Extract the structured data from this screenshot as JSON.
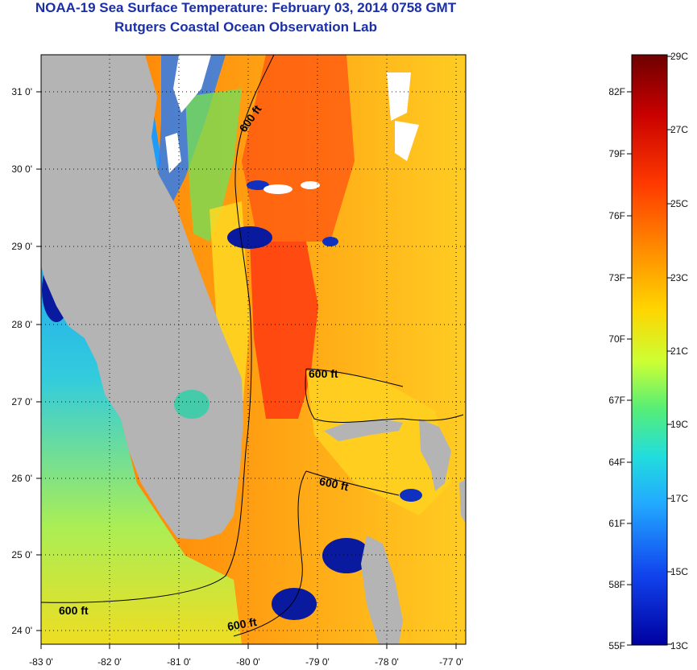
{
  "header": {
    "title": "NOAA-19 Sea Surface Temperature:  February 03, 2014 0758 GMT",
    "subtitle": "Rutgers Coastal Ocean Observation Lab"
  },
  "map": {
    "lon_labels": [
      "-83 0'",
      "-82 0'",
      "-81 0'",
      "-80 0'",
      "-79 0'",
      "-78 0'",
      "-77 0'"
    ],
    "lat_labels": [
      "31 0'",
      "30 0'",
      "29 0'",
      "28 0'",
      "27 0'",
      "26 0'",
      "25 0'",
      "24 0'"
    ],
    "isobath_labels": [
      "600 ft",
      "600 ft",
      "600 ft",
      "600 ft",
      "600 ft"
    ],
    "colors": {
      "land": "#b4b4b4",
      "cloud": "#ffffff",
      "isobath": "#000000"
    }
  },
  "colorbar": {
    "fahrenheit_labels": [
      "82F",
      "79F",
      "76F",
      "73F",
      "70F",
      "67F",
      "64F",
      "61F",
      "58F",
      "55F"
    ],
    "celsius_labels": [
      "29C",
      "27C",
      "25C",
      "23C",
      "21C",
      "19C",
      "17C",
      "15C",
      "13C"
    ],
    "gradient_colors": [
      "#6e0000",
      "#c80000",
      "#ff3a00",
      "#ff8c00",
      "#ffd400",
      "#ccff33",
      "#55ee77",
      "#22dddd",
      "#22aaff",
      "#1144ee",
      "#0000a0"
    ]
  }
}
